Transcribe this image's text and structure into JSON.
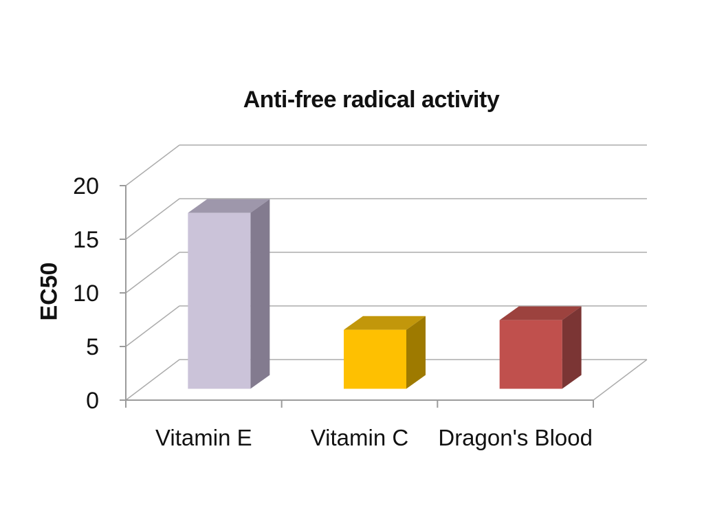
{
  "title": "Anti-free radical activity",
  "chart_data": {
    "type": "bar",
    "style": "3d-column",
    "title": "Anti-free radical activity",
    "ylabel": "EC50",
    "xlabel": "",
    "categories": [
      "Vitamin E",
      "Vitamin C",
      "Dragon's Blood"
    ],
    "values": [
      16.4,
      5.5,
      6.4
    ],
    "yticks": [
      0,
      5,
      10,
      15,
      20
    ],
    "ylim": [
      0,
      20
    ],
    "grid": true,
    "legend": false,
    "background": "#ffffff",
    "axis_color": "#9b9b9b",
    "grid_color": "#ababab",
    "text_color": "#111111",
    "bar_colors": [
      {
        "name": "lavender",
        "front": "#cbc3d9",
        "top": "#9e97ab",
        "side": "#837b8f"
      },
      {
        "name": "gold",
        "front": "#fec001",
        "top": "#c2970b",
        "side": "#9e7a00"
      },
      {
        "name": "brick-red",
        "front": "#c0504d",
        "top": "#9c423e",
        "side": "#7b3534"
      }
    ]
  }
}
